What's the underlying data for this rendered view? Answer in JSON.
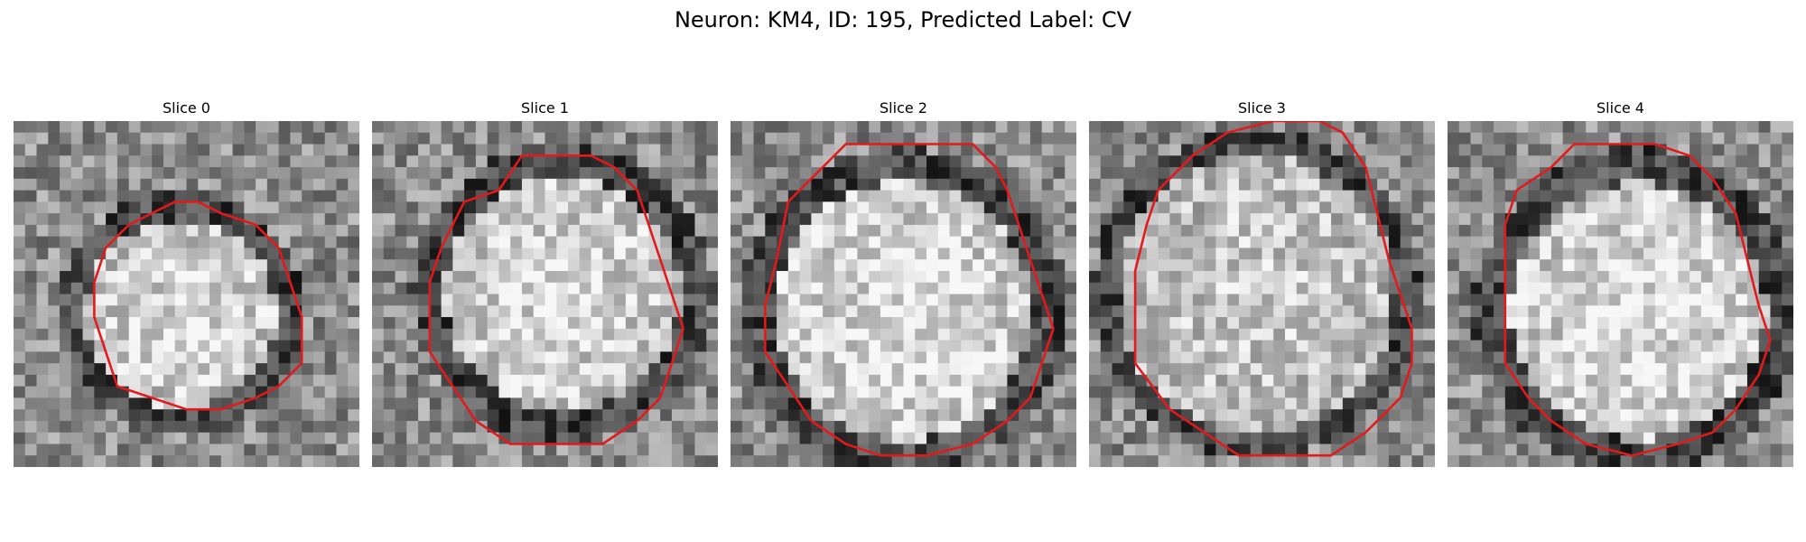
{
  "figure": {
    "title": "Neuron: KM4, ID: 195, Predicted Label: CV"
  },
  "panels": [
    {
      "title": "Slice 0",
      "contour": "small-round",
      "contour_color": "#e31a1c"
    },
    {
      "title": "Slice 1",
      "contour": "large-round",
      "contour_color": "#e31a1c"
    },
    {
      "title": "Slice 2",
      "contour": "large-round",
      "contour_color": "#e31a1c"
    },
    {
      "title": "Slice 3",
      "contour": "octagonal",
      "contour_color": "#e31a1c"
    },
    {
      "title": "Slice 4",
      "contour": "large-round",
      "contour_color": "#e31a1c"
    }
  ],
  "colormap": "grayscale"
}
